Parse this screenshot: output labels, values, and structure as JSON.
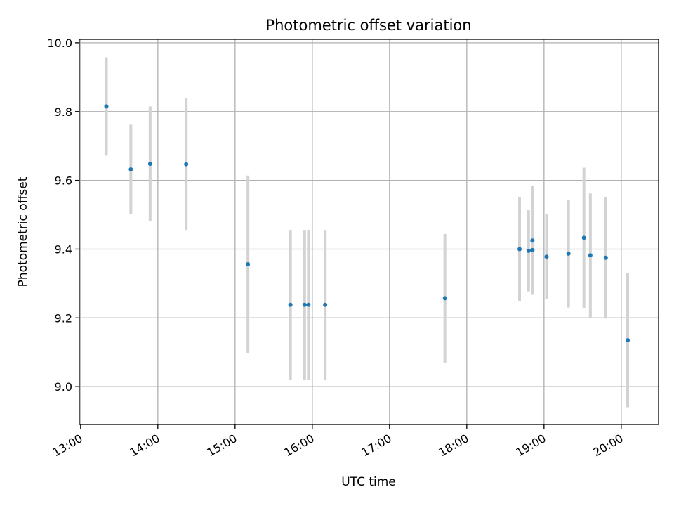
{
  "chart_data": {
    "type": "scatter",
    "title": "Photometric offset variation",
    "xlabel": "UTC time",
    "ylabel": "Photometric offset",
    "xlim": [
      "12:59",
      "20:29"
    ],
    "ylim": [
      8.89,
      10.01
    ],
    "grid": true,
    "colors": {
      "point": "#1f77b4",
      "errorbar": "#d3d3d3",
      "grid": "#b0b0b0"
    },
    "x_ticks": [
      "13:00",
      "14:00",
      "15:00",
      "16:00",
      "17:00",
      "18:00",
      "19:00",
      "20:00"
    ],
    "y_ticks": [
      "9.0",
      "9.2",
      "9.4",
      "9.6",
      "9.8",
      "10.0"
    ],
    "series": [
      {
        "points": [
          {
            "x": "13:20",
            "y": 9.815,
            "err": 0.143
          },
          {
            "x": "13:39",
            "y": 9.632,
            "err": 0.13
          },
          {
            "x": "13:54",
            "y": 9.648,
            "err": 0.167
          },
          {
            "x": "14:22",
            "y": 9.647,
            "err": 0.191
          },
          {
            "x": "15:10",
            "y": 9.356,
            "err": 0.258
          },
          {
            "x": "15:43",
            "y": 9.238,
            "err": 0.218
          },
          {
            "x": "15:54",
            "y": 9.238,
            "err": 0.218
          },
          {
            "x": "15:57",
            "y": 9.238,
            "err": 0.218
          },
          {
            "x": "16:10",
            "y": 9.238,
            "err": 0.218
          },
          {
            "x": "17:43",
            "y": 9.257,
            "err": 0.187
          },
          {
            "x": "18:41",
            "y": 9.4,
            "err": 0.152
          },
          {
            "x": "18:48",
            "y": 9.395,
            "err": 0.118
          },
          {
            "x": "18:51",
            "y": 9.425,
            "err": 0.158
          },
          {
            "x": "18:51",
            "y": 9.397,
            "err": 0.118
          },
          {
            "x": "19:02",
            "y": 9.378,
            "err": 0.123
          },
          {
            "x": "19:19",
            "y": 9.387,
            "err": 0.157
          },
          {
            "x": "19:31",
            "y": 9.433,
            "err": 0.204
          },
          {
            "x": "19:36",
            "y": 9.382,
            "err": 0.18
          },
          {
            "x": "19:48",
            "y": 9.375,
            "err": 0.177
          },
          {
            "x": "20:05",
            "y": 9.135,
            "err": 0.195
          }
        ]
      }
    ]
  }
}
